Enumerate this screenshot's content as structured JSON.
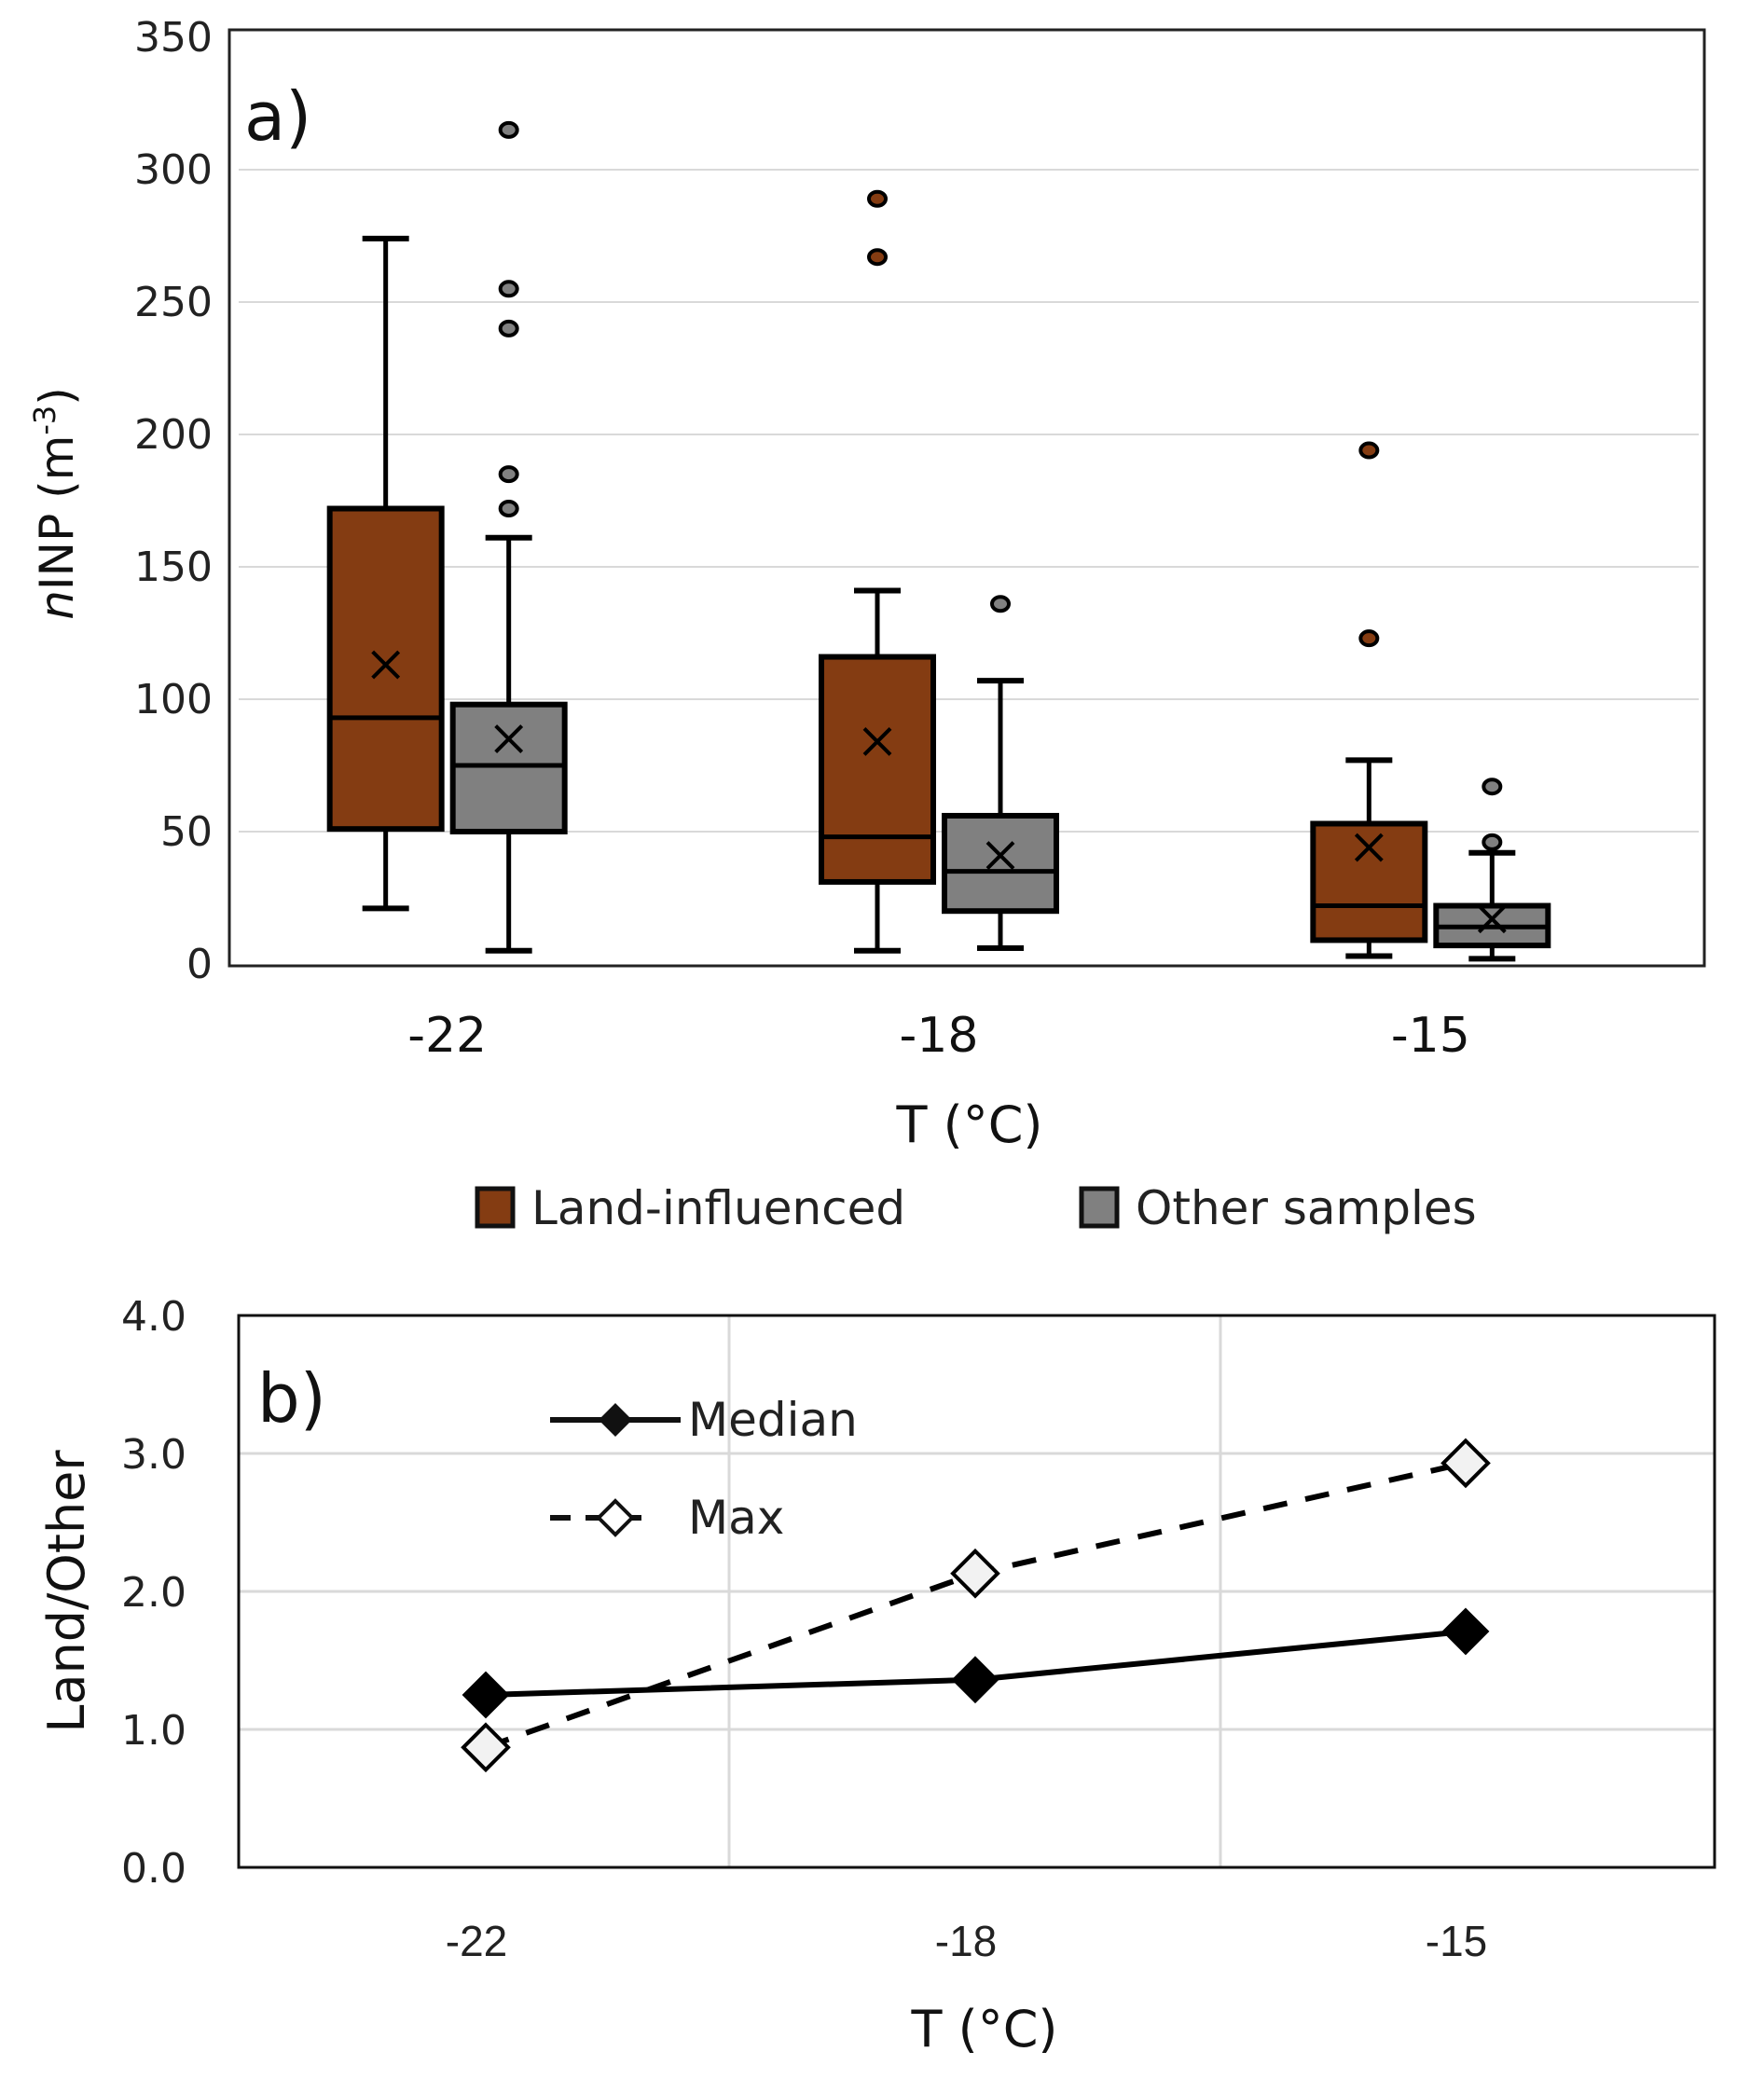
{
  "chart_data": [
    {
      "panel_label": "a)",
      "type": "box",
      "xlabel": "T (°C)",
      "ylabel_italic": "n",
      "ylabel_main": "INP (m",
      "ylabel_sup": "-3",
      "ylabel_close": ")",
      "ylim": [
        0,
        350
      ],
      "yticks": [
        0,
        50,
        100,
        150,
        200,
        250,
        300,
        350
      ],
      "grid": "horizontal",
      "categories": [
        "-22",
        "-18",
        "-15"
      ],
      "legend": {
        "placement": "bottom-center",
        "entries": [
          "Land-influenced",
          "Other samples"
        ]
      },
      "series": [
        {
          "name": "Land-influenced",
          "color": "#843C12",
          "boxes": [
            {
              "category": "-22",
              "whisker_low": 21,
              "q1": 51,
              "median": 93,
              "q3": 172,
              "whisker_high": 274,
              "mean": 113,
              "outliers": []
            },
            {
              "category": "-18",
              "whisker_low": 5,
              "q1": 31,
              "median": 48,
              "q3": 116,
              "whisker_high": 141,
              "mean": 84,
              "outliers": [
                289,
                267
              ]
            },
            {
              "category": "-15",
              "whisker_low": 3,
              "q1": 9,
              "median": 22,
              "q3": 53,
              "whisker_high": 77,
              "mean": 44,
              "outliers": [
                194,
                123
              ]
            }
          ]
        },
        {
          "name": "Other samples",
          "color": "#808080",
          "boxes": [
            {
              "category": "-22",
              "whisker_low": 5,
              "q1": 50,
              "median": 75,
              "q3": 98,
              "whisker_high": 161,
              "mean": 85,
              "outliers": [
                315,
                255,
                240,
                185,
                172
              ]
            },
            {
              "category": "-18",
              "whisker_low": 6,
              "q1": 20,
              "median": 35,
              "q3": 56,
              "whisker_high": 107,
              "mean": 41,
              "outliers": [
                136
              ]
            },
            {
              "category": "-15",
              "whisker_low": 2,
              "q1": 7,
              "median": 14,
              "q3": 22,
              "whisker_high": 42,
              "mean": 17,
              "outliers": [
                67,
                46
              ]
            }
          ]
        }
      ]
    },
    {
      "panel_label": "b)",
      "type": "line",
      "xlabel": "T (°C)",
      "ylabel": "Land/Other",
      "ylim": [
        0,
        4
      ],
      "yticks": [
        "0.0",
        "1.0",
        "2.0",
        "3.0",
        "4.0"
      ],
      "grid": "both",
      "categories": [
        "-22",
        "-18",
        "-15"
      ],
      "legend": {
        "placement": "top-left",
        "entries": [
          "Median",
          "Max"
        ]
      },
      "series": [
        {
          "name": "Median",
          "style": "solid",
          "marker": "filled-diamond",
          "values": [
            1.25,
            1.36,
            1.71
          ]
        },
        {
          "name": "Max",
          "style": "dashed",
          "marker": "open-diamond",
          "values": [
            0.87,
            2.13,
            2.93
          ]
        }
      ]
    }
  ]
}
